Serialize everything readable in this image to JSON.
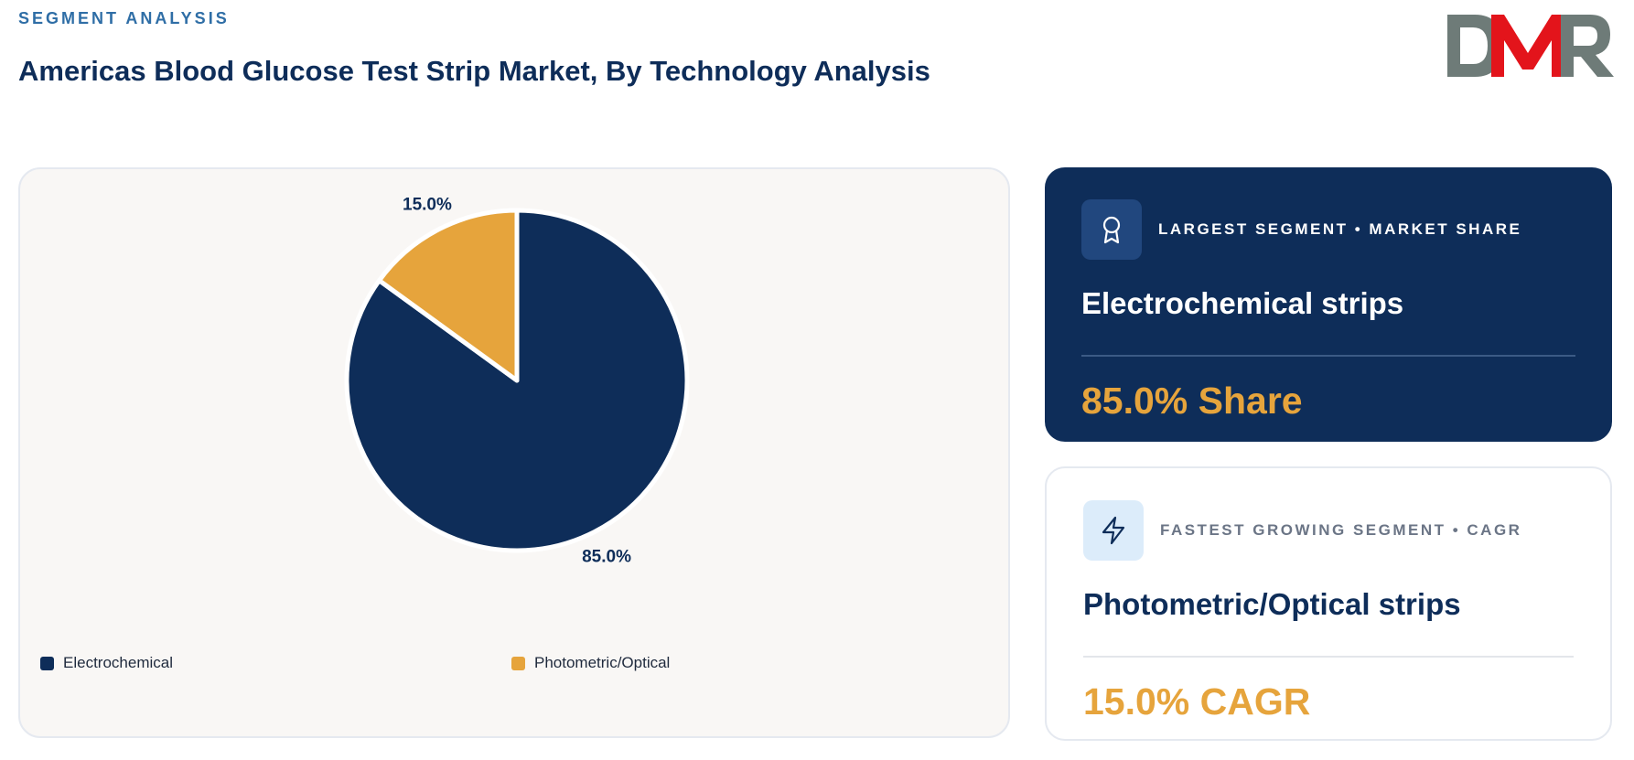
{
  "header": {
    "eyebrow": "SEGMENT ANALYSIS",
    "title": "Americas Blood Glucose Test Strip Market, By Technology Analysis",
    "logo_text": "DMR"
  },
  "colors": {
    "navy": "#0e2d59",
    "gold": "#e6a43c",
    "accent_blue": "#2f6ea6",
    "logo_gray": "#6e7b78",
    "logo_red": "#e3141b"
  },
  "chart_data": {
    "type": "pie",
    "categories": [
      "Electrochemical",
      "Photometric/Optical"
    ],
    "values": [
      85.0,
      15.0
    ],
    "data_labels": [
      "85.0%",
      "15.0%"
    ],
    "colors": [
      "#0e2d59",
      "#e6a43c"
    ],
    "start_angle": "12 o'clock, clockwise",
    "legend_position": "bottom"
  },
  "cards": {
    "largest": {
      "eyebrow": "LARGEST SEGMENT • MARKET SHARE",
      "segment": "Electrochemical strips",
      "value": "85.0% Share",
      "icon": "award-icon"
    },
    "fastest": {
      "eyebrow": "FASTEST GROWING SEGMENT • CAGR",
      "segment": "Photometric/Optical strips",
      "value": "15.0% CAGR",
      "icon": "lightning-icon"
    }
  }
}
